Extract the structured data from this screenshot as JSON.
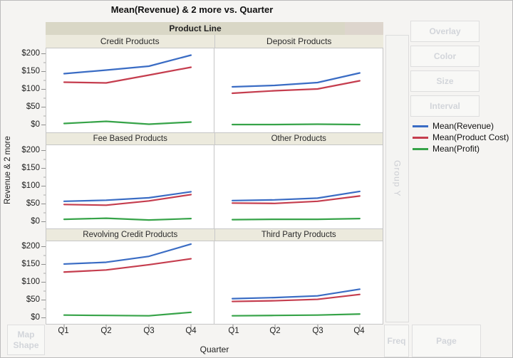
{
  "title": "Mean(Revenue) & 2 more vs. Quarter",
  "facet": {
    "header": "Product Line"
  },
  "axes": {
    "y_title": "Revenue & 2 more",
    "x_title": "Quarter",
    "y_tick_labels": [
      "$200",
      "$150",
      "$100",
      "$50",
      "$0"
    ],
    "x_tick_labels": [
      "Q1",
      "Q2",
      "Q3",
      "Q4"
    ]
  },
  "controls": {
    "overlay": "Overlay",
    "color": "Color",
    "size": "Size",
    "interval": "Interval",
    "group_y": "Group Y",
    "freq": "Freq",
    "page": "Page",
    "map_shape": "Map Shape"
  },
  "legend": {
    "items": [
      {
        "label": "Mean(Revenue)",
        "color": "#3a6cc4"
      },
      {
        "label": "Mean(Product Cost)",
        "color": "#c53d4e"
      },
      {
        "label": "Mean(Profit)",
        "color": "#36a348"
      }
    ]
  },
  "chart_data": {
    "type": "line",
    "facet_variable": "Product Line",
    "x": [
      "Q1",
      "Q2",
      "Q3",
      "Q4"
    ],
    "xlabel": "Quarter",
    "ylabel": "Revenue & 2 more",
    "ylim": [
      0,
      200
    ],
    "y_ticks": [
      200,
      150,
      100,
      50,
      0
    ],
    "grid": false,
    "legend_position": "right",
    "panels": [
      {
        "title": "Credit Products",
        "series": [
          {
            "name": "Mean(Revenue)",
            "color": "#3a6cc4",
            "values": [
              145,
              155,
              166,
              197
            ]
          },
          {
            "name": "Mean(Product Cost)",
            "color": "#c53d4e",
            "values": [
              121,
              119,
              141,
              163
            ]
          },
          {
            "name": "Mean(Profit)",
            "color": "#36a348",
            "values": [
              5,
              11,
              3,
              9
            ]
          }
        ]
      },
      {
        "title": "Deposit Products",
        "series": [
          {
            "name": "Mean(Revenue)",
            "color": "#3a6cc4",
            "values": [
              108,
              112,
              120,
              147
            ]
          },
          {
            "name": "Mean(Product Cost)",
            "color": "#c53d4e",
            "values": [
              90,
              97,
              102,
              125
            ]
          },
          {
            "name": "Mean(Profit)",
            "color": "#36a348",
            "values": [
              2,
              2,
              3,
              2
            ]
          }
        ]
      },
      {
        "title": "Fee Based Products",
        "series": [
          {
            "name": "Mean(Revenue)",
            "color": "#3a6cc4",
            "values": [
              57,
              60,
              67,
              84
            ]
          },
          {
            "name": "Mean(Product Cost)",
            "color": "#c53d4e",
            "values": [
              48,
              46,
              58,
              76
            ]
          },
          {
            "name": "Mean(Profit)",
            "color": "#36a348",
            "values": [
              6,
              9,
              4,
              8
            ]
          }
        ]
      },
      {
        "title": "Other Products",
        "series": [
          {
            "name": "Mean(Revenue)",
            "color": "#3a6cc4",
            "values": [
              59,
              61,
              66,
              85
            ]
          },
          {
            "name": "Mean(Product Cost)",
            "color": "#c53d4e",
            "values": [
              52,
              51,
              57,
              72
            ]
          },
          {
            "name": "Mean(Profit)",
            "color": "#36a348",
            "values": [
              5,
              6,
              6,
              8
            ]
          }
        ]
      },
      {
        "title": "Revolving Credit Products",
        "series": [
          {
            "name": "Mean(Revenue)",
            "color": "#3a6cc4",
            "values": [
              151,
              156,
              173,
              208
            ]
          },
          {
            "name": "Mean(Product Cost)",
            "color": "#c53d4e",
            "values": [
              128,
              134,
              149,
              166
            ]
          },
          {
            "name": "Mean(Profit)",
            "color": "#36a348",
            "values": [
              5,
              4,
              3,
              13
            ]
          }
        ]
      },
      {
        "title": "Third Party Products",
        "series": [
          {
            "name": "Mean(Revenue)",
            "color": "#3a6cc4",
            "values": [
              52,
              55,
              60,
              79
            ]
          },
          {
            "name": "Mean(Product Cost)",
            "color": "#c53d4e",
            "values": [
              44,
              46,
              50,
              64
            ]
          },
          {
            "name": "Mean(Profit)",
            "color": "#36a348",
            "values": [
              3,
              4,
              5,
              8
            ]
          }
        ]
      }
    ]
  }
}
